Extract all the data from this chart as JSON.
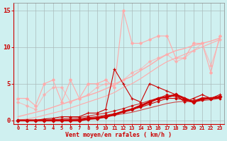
{
  "bg_color": "#cff0f0",
  "grid_color": "#aabbbb",
  "axis_color": "#cc0000",
  "tick_color": "#cc0000",
  "xlabel": "Vent moyen/en rafales ( km/h )",
  "xlabel_color": "#cc0000",
  "xlim": [
    -0.5,
    23.5
  ],
  "ylim": [
    -0.5,
    16
  ],
  "yticks": [
    0,
    5,
    10,
    15
  ],
  "xticks": [
    0,
    1,
    2,
    3,
    4,
    5,
    6,
    7,
    8,
    9,
    10,
    11,
    12,
    13,
    14,
    15,
    16,
    17,
    18,
    19,
    20,
    21,
    22,
    23
  ],
  "lines": [
    {
      "x": [
        0,
        1,
        2,
        3,
        4,
        5,
        6,
        7,
        8,
        9,
        10,
        11,
        12,
        13,
        14,
        15,
        16,
        17,
        18,
        19,
        20,
        21,
        22,
        23
      ],
      "y": [
        3.0,
        3.0,
        2.0,
        5.0,
        5.5,
        2.5,
        5.5,
        3.0,
        5.0,
        5.0,
        5.5,
        4.5,
        15.0,
        10.5,
        10.5,
        11.0,
        11.5,
        11.5,
        8.5,
        8.5,
        10.5,
        10.5,
        6.5,
        11.5
      ],
      "color": "#ffaaaa",
      "lw": 0.8,
      "marker": "D",
      "ms": 2.0,
      "alpha": 1.0,
      "zorder": 3
    },
    {
      "x": [
        0,
        1,
        2,
        3,
        4,
        5,
        6,
        7,
        8,
        9,
        10,
        11,
        12,
        13,
        14,
        15,
        16,
        17,
        18,
        19,
        20,
        21,
        22,
        23
      ],
      "y": [
        0.5,
        0.8,
        1.1,
        1.4,
        1.8,
        2.2,
        2.6,
        3.0,
        3.4,
        3.8,
        4.3,
        4.8,
        5.5,
        6.0,
        6.8,
        7.5,
        8.3,
        9.0,
        9.5,
        9.8,
        10.2,
        10.5,
        10.8,
        11.2
      ],
      "color": "#ffaaaa",
      "lw": 1.0,
      "marker": null,
      "ms": 0,
      "alpha": 1.0,
      "zorder": 2
    },
    {
      "x": [
        0,
        1,
        2,
        3,
        4,
        5,
        6,
        7,
        8,
        9,
        10,
        11,
        12,
        13,
        14,
        15,
        16,
        17,
        18,
        19,
        20,
        21,
        22,
        23
      ],
      "y": [
        0.0,
        0.2,
        0.4,
        0.7,
        1.0,
        1.3,
        1.7,
        2.1,
        2.5,
        2.9,
        3.3,
        3.8,
        4.5,
        5.0,
        5.7,
        6.5,
        7.3,
        8.0,
        8.5,
        9.0,
        9.5,
        10.0,
        10.5,
        11.0
      ],
      "color": "#ffaaaa",
      "lw": 0.8,
      "marker": null,
      "ms": 0,
      "alpha": 1.0,
      "zorder": 2
    },
    {
      "x": [
        0,
        1,
        2,
        3,
        4,
        5,
        6,
        7,
        8,
        9,
        10,
        11,
        12,
        13,
        14,
        15,
        16,
        17,
        18,
        19,
        20,
        21,
        22,
        23
      ],
      "y": [
        2.5,
        2.0,
        1.5,
        3.5,
        4.5,
        4.5,
        2.5,
        3.0,
        3.5,
        4.5,
        5.0,
        5.0,
        5.5,
        6.5,
        7.0,
        8.0,
        8.5,
        9.0,
        8.0,
        8.5,
        9.5,
        10.5,
        7.5,
        11.0
      ],
      "color": "#ffaaaa",
      "lw": 0.8,
      "marker": "D",
      "ms": 2.0,
      "alpha": 0.7,
      "zorder": 2
    },
    {
      "x": [
        0,
        1,
        2,
        3,
        4,
        5,
        6,
        7,
        8,
        9,
        10,
        11,
        12,
        13,
        14,
        15,
        16,
        17,
        18,
        19,
        20,
        21,
        22,
        23
      ],
      "y": [
        0.0,
        0.0,
        0.0,
        0.2,
        0.3,
        0.5,
        0.5,
        0.5,
        1.0,
        1.0,
        1.5,
        7.0,
        5.0,
        3.0,
        2.5,
        5.0,
        4.5,
        4.0,
        3.5,
        2.5,
        3.0,
        3.5,
        3.0,
        3.5
      ],
      "color": "#cc0000",
      "lw": 0.8,
      "marker": "+",
      "ms": 3.5,
      "alpha": 1.0,
      "zorder": 4
    },
    {
      "x": [
        0,
        1,
        2,
        3,
        4,
        5,
        6,
        7,
        8,
        9,
        10,
        11,
        12,
        13,
        14,
        15,
        16,
        17,
        18,
        19,
        20,
        21,
        22,
        23
      ],
      "y": [
        0.0,
        0.0,
        0.0,
        0.0,
        0.0,
        0.0,
        0.0,
        0.0,
        0.2,
        0.3,
        0.5,
        0.8,
        1.2,
        1.5,
        2.0,
        2.5,
        3.0,
        3.2,
        3.5,
        3.0,
        2.5,
        3.0,
        3.0,
        3.2
      ],
      "color": "#cc0000",
      "lw": 2.0,
      "marker": "D",
      "ms": 2.5,
      "alpha": 1.0,
      "zorder": 5
    },
    {
      "x": [
        0,
        1,
        2,
        3,
        4,
        5,
        6,
        7,
        8,
        9,
        10,
        11,
        12,
        13,
        14,
        15,
        16,
        17,
        18,
        19,
        20,
        21,
        22,
        23
      ],
      "y": [
        0.0,
        0.0,
        0.0,
        0.0,
        0.0,
        0.0,
        0.1,
        0.2,
        0.4,
        0.5,
        0.7,
        0.9,
        1.2,
        1.5,
        1.8,
        2.2,
        2.6,
        3.0,
        3.0,
        2.8,
        2.5,
        2.8,
        3.0,
        3.0
      ],
      "color": "#cc0000",
      "lw": 0.8,
      "marker": "D",
      "ms": 1.5,
      "alpha": 1.0,
      "zorder": 4
    },
    {
      "x": [
        0,
        1,
        2,
        3,
        4,
        5,
        6,
        7,
        8,
        9,
        10,
        11,
        12,
        13,
        14,
        15,
        16,
        17,
        18,
        19,
        20,
        21,
        22,
        23
      ],
      "y": [
        0.0,
        0.0,
        0.0,
        0.0,
        0.1,
        0.2,
        0.3,
        0.4,
        0.6,
        0.8,
        1.0,
        1.3,
        1.6,
        2.0,
        2.3,
        2.7,
        3.0,
        3.5,
        3.2,
        2.8,
        2.7,
        3.0,
        3.0,
        3.2
      ],
      "color": "#cc0000",
      "lw": 0.8,
      "marker": "D",
      "ms": 1.5,
      "alpha": 0.8,
      "zorder": 4
    },
    {
      "x": [
        0,
        1,
        2,
        3,
        4,
        5,
        6,
        7,
        8,
        9,
        10,
        11,
        12,
        13,
        14,
        15,
        16,
        17,
        18,
        19,
        20,
        21,
        22,
        23
      ],
      "y": [
        0.0,
        0.0,
        0.0,
        0.0,
        0.0,
        0.0,
        0.0,
        0.1,
        0.2,
        0.3,
        0.5,
        0.7,
        0.9,
        1.1,
        1.4,
        1.7,
        2.0,
        2.3,
        2.5,
        2.6,
        2.5,
        2.7,
        2.8,
        3.0
      ],
      "color": "#cc0000",
      "lw": 0.8,
      "marker": null,
      "ms": 0,
      "alpha": 0.7,
      "zorder": 3
    }
  ]
}
